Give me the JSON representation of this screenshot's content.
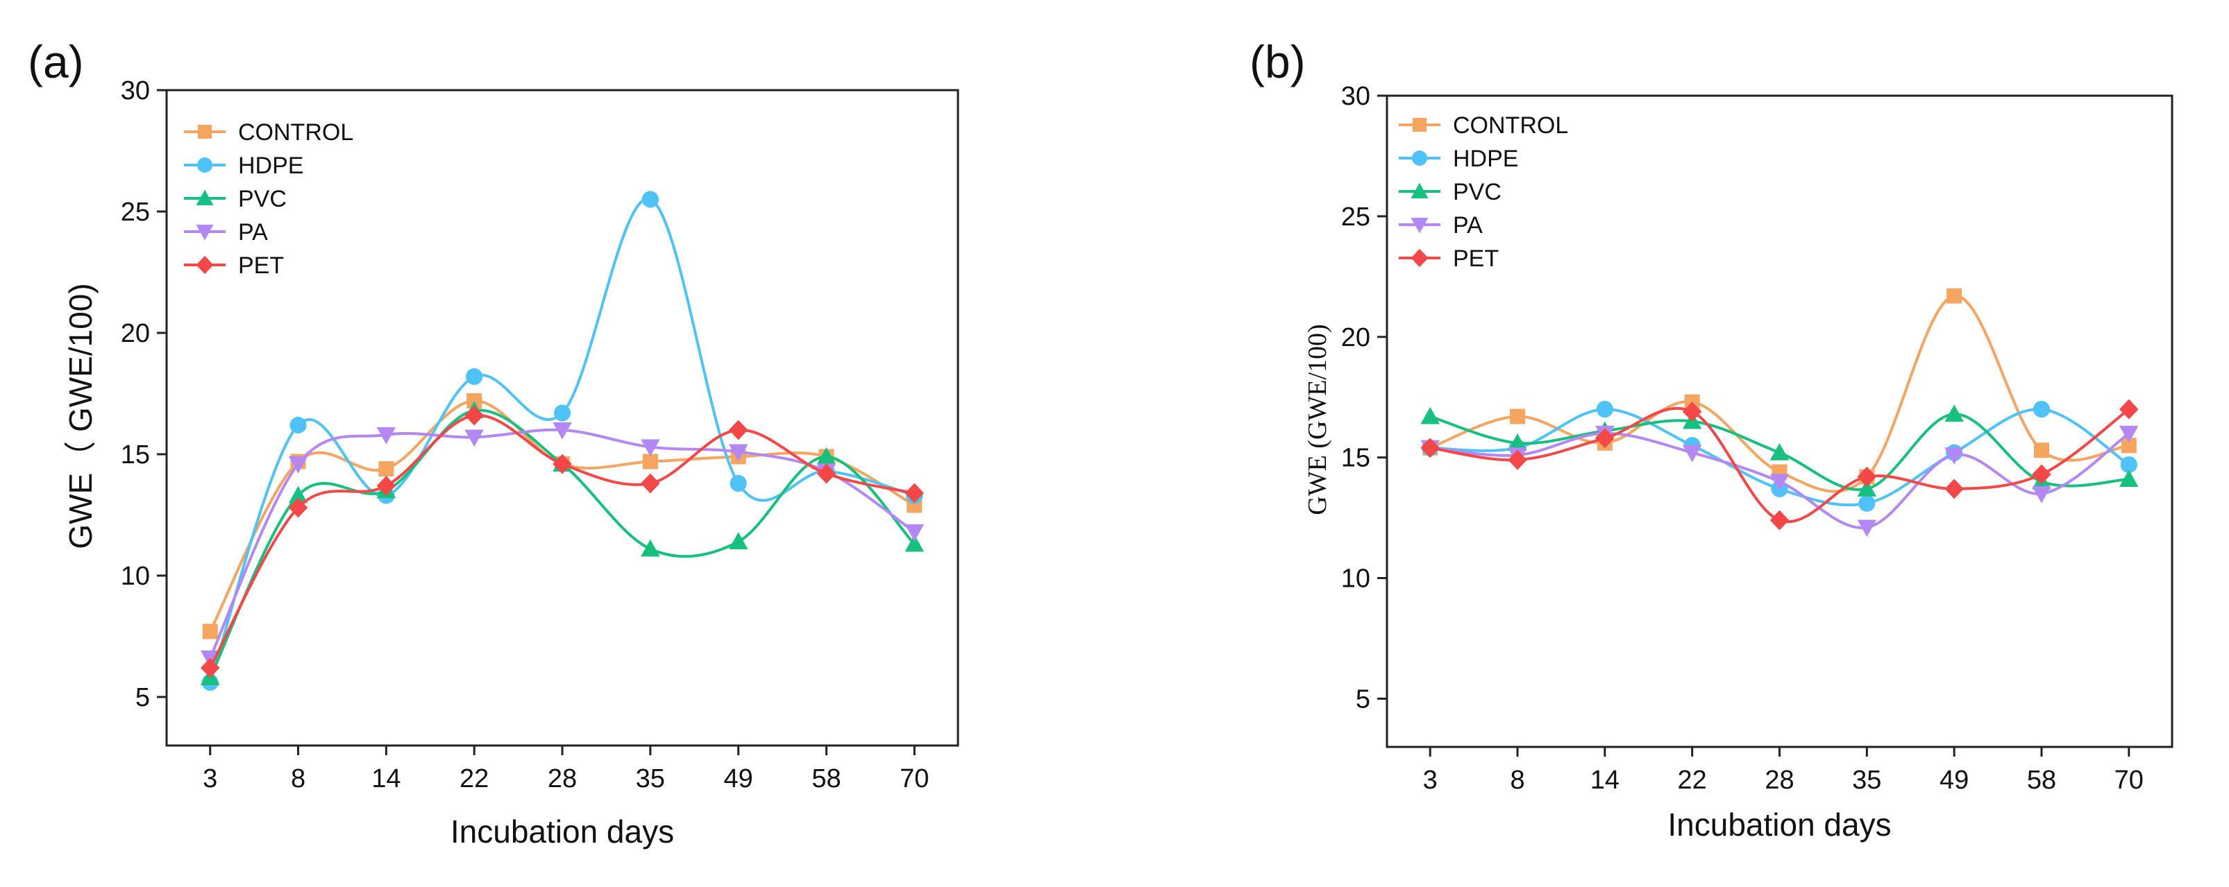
{
  "chart_data": [
    {
      "panel": "(a)",
      "type": "line",
      "smooth": true,
      "categories": [
        "3",
        "8",
        "14",
        "22",
        "28",
        "35",
        "49",
        "58",
        "70"
      ],
      "xlabel": "Incubation days",
      "ylabel": "GWE（ GWE/100)",
      "ylim": [
        3,
        30
      ],
      "yticks": [
        5,
        10,
        15,
        20,
        25,
        30
      ],
      "legend_position": "top-left",
      "series": [
        {
          "name": "CONTROL",
          "marker": "square",
          "color": "#f5a55f",
          "values": [
            7.7,
            14.7,
            14.4,
            17.2,
            14.6,
            14.7,
            14.9,
            14.9,
            12.9
          ]
        },
        {
          "name": "HDPE",
          "marker": "circle",
          "color": "#4fc3f7",
          "values": [
            5.6,
            16.2,
            13.3,
            18.2,
            16.7,
            25.5,
            13.8,
            14.3,
            13.3
          ]
        },
        {
          "name": "PVC",
          "marker": "triangle-up",
          "color": "#18c080",
          "values": [
            5.8,
            13.3,
            13.5,
            16.8,
            14.6,
            11.1,
            11.4,
            14.9,
            11.3
          ]
        },
        {
          "name": "PA",
          "marker": "triangle-down",
          "color": "#b388f5",
          "values": [
            6.6,
            14.6,
            15.8,
            15.7,
            16.0,
            15.3,
            15.1,
            14.3,
            11.8
          ]
        },
        {
          "name": "PET",
          "marker": "diamond",
          "color": "#f44848",
          "values": [
            6.2,
            12.8,
            13.7,
            16.6,
            14.6,
            13.8,
            16.0,
            14.2,
            13.4
          ]
        }
      ]
    },
    {
      "panel": "(b)",
      "type": "line",
      "smooth": true,
      "categories": [
        "3",
        "8",
        "14",
        "22",
        "28",
        "35",
        "49",
        "58",
        "70"
      ],
      "xlabel": "Incubation days",
      "ylabel": "GWE (GWE/100)",
      "ylim": [
        3,
        30
      ],
      "yticks": [
        5,
        10,
        15,
        20,
        25,
        30
      ],
      "legend_position": "top-left",
      "series": [
        {
          "name": "CONTROL",
          "marker": "square",
          "color": "#f5a55f",
          "values": [
            15.4,
            16.7,
            15.6,
            17.3,
            14.4,
            14.2,
            21.7,
            15.3,
            15.5
          ]
        },
        {
          "name": "HDPE",
          "marker": "circle",
          "color": "#4fc3f7",
          "values": [
            15.4,
            15.4,
            17.0,
            15.5,
            13.7,
            13.1,
            15.2,
            17.0,
            14.7
          ]
        },
        {
          "name": "PVC",
          "marker": "triangle-up",
          "color": "#18c080",
          "values": [
            16.7,
            15.6,
            16.1,
            16.5,
            15.2,
            13.7,
            16.8,
            14.0,
            14.1
          ]
        },
        {
          "name": "PA",
          "marker": "triangle-down",
          "color": "#b388f5",
          "values": [
            15.4,
            15.1,
            16.0,
            15.2,
            14.0,
            12.1,
            15.1,
            13.5,
            16.0
          ]
        },
        {
          "name": "PET",
          "marker": "diamond",
          "color": "#f44848",
          "values": [
            15.4,
            14.9,
            15.8,
            16.9,
            12.4,
            14.2,
            13.7,
            14.3,
            17.0
          ]
        }
      ]
    }
  ]
}
